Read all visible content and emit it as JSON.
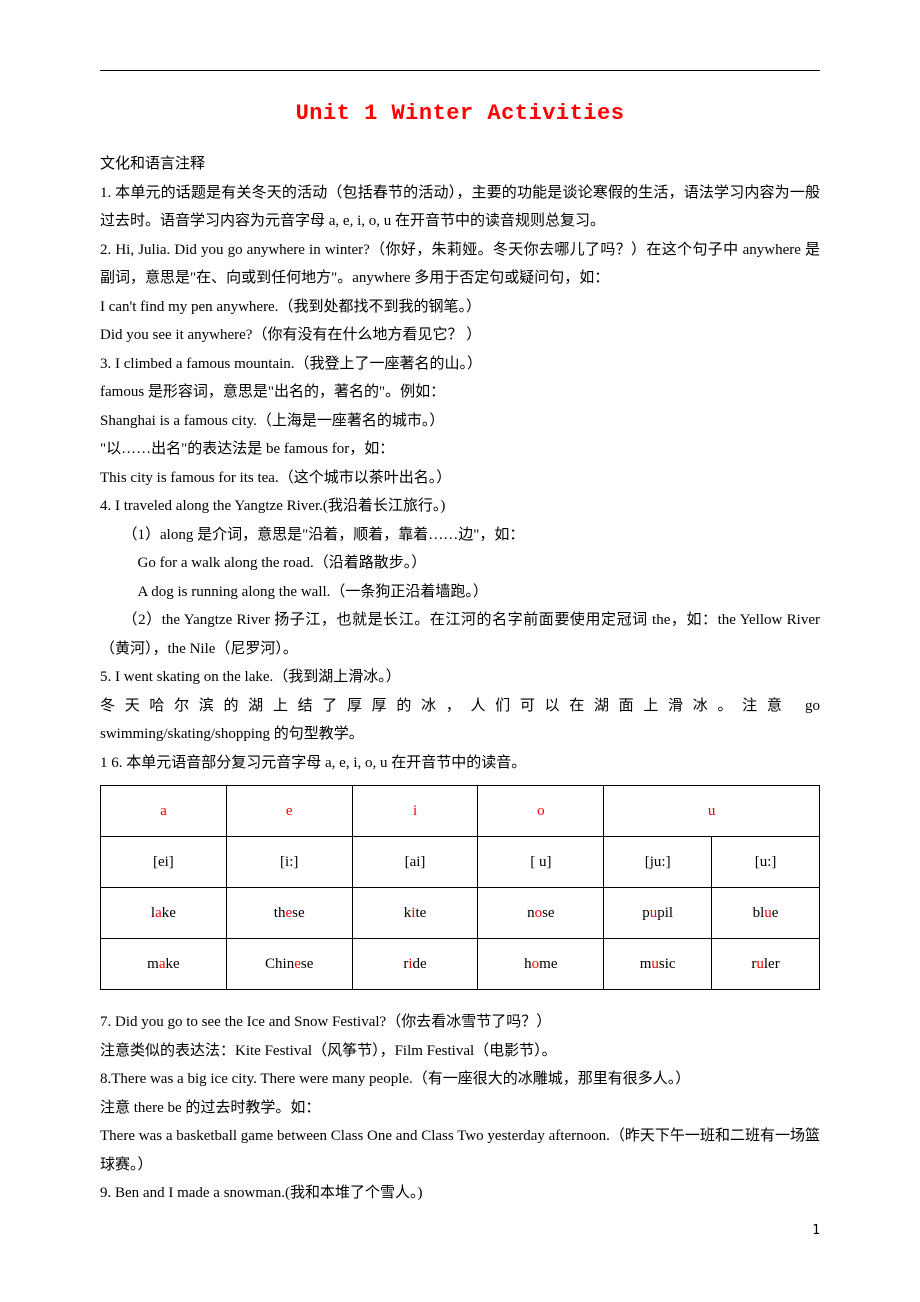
{
  "title": "Unit 1  Winter Activities",
  "sectionHeader": "文化和语言注释",
  "para1": "1. 本单元的话题是有关冬天的活动（包括春节的活动），主要的功能是谈论寒假的生活，语法学习内容为一般过去时。语音学习内容为元音字母 a, e, i, o, u 在开音节中的读音规则总复习。",
  "para2": "2. Hi, Julia. Did you go anywhere in winter?（你好，朱莉娅。冬天你去哪儿了吗？）在这个句子中 anywhere 是副词，意思是\"在、向或到任何地方\"。anywhere 多用于否定句或疑问句，如：",
  "para2a": "I can't find my pen anywhere.（我到处都找不到我的钢笔。）",
  "para2b": " Did you see it anywhere?（你有没有在什么地方看见它？ ）",
  "para3": "3. I climbed a famous mountain.（我登上了一座著名的山。）",
  "para3a": "famous 是形容词，意思是\"出名的，著名的\"。例如：",
  "para3b": "Shanghai is a famous city.（上海是一座著名的城市。）",
  "para3c": "\"以……出名\"的表达法是 be famous for，如：",
  "para3d": "This city is famous for its tea.（这个城市以茶叶出名。）",
  "para4": "4. I traveled along the Yangtze River.(我沿着长江旅行。)",
  "para4a": "（1）along 是介词，意思是\"沿着，顺着，靠着……边\"，如：",
  "para4b": "Go for a walk along the road.（沿着路散步。）",
  "para4c": "A dog is running along the wall.（一条狗正沿着墙跑。）",
  "para4d": "（2）the Yangtze River 扬子江，也就是长江。在江河的名字前面要使用定冠词 the，如：the Yellow River（黄河），the Nile（尼罗河）。",
  "para5": "5. I went skating on the lake.（我到湖上滑冰。）",
  "para5a_pre": " 冬天哈尔滨的湖上结了厚厚的冰，人们可以在湖面上滑冰。注意 go",
  "para5a_post": "swimming/skating/shopping 的句型教学。",
  "para6": "1  6. 本单元语音部分复习元音字母 a, e, i, o, u 在开音节中的读音。",
  "table": {
    "columns": 6,
    "colWidths": [
      "17.5%",
      "17.5%",
      "17.5%",
      "17.5%",
      "15%",
      "15%"
    ],
    "headerRow": [
      {
        "text": "a",
        "colspan": 1,
        "color": "#ff0000"
      },
      {
        "text": "e",
        "colspan": 1,
        "color": "#ff0000"
      },
      {
        "text": "i",
        "colspan": 1,
        "color": "#ff0000"
      },
      {
        "text": "o",
        "colspan": 1,
        "color": "#ff0000"
      },
      {
        "text": "u",
        "colspan": 2,
        "color": "#ff0000"
      }
    ],
    "rows": [
      [
        "[ei]",
        "[i:]",
        "[ai]",
        "[  u]",
        "[ju:]",
        "[u:]"
      ]
    ],
    "coloredRows": [
      [
        {
          "pre": "l",
          "hl": "a",
          "post": "ke"
        },
        {
          "pre": "th",
          "hl": "e",
          "post": "se"
        },
        {
          "pre": "k",
          "hl": "i",
          "post": "te"
        },
        {
          "pre": "n",
          "hl": "o",
          "post": "se"
        },
        {
          "pre": "p",
          "hl": "u",
          "post": "pil"
        },
        {
          "pre": "bl",
          "hl": "u",
          "post": "e"
        }
      ],
      [
        {
          "pre": "m",
          "hl": "a",
          "post": "ke"
        },
        {
          "pre": "Chin",
          "hl": "e",
          "post": "se"
        },
        {
          "pre": "r",
          "hl": "i",
          "post": "de"
        },
        {
          "pre": "h",
          "hl": "o",
          "post": "me"
        },
        {
          "pre": "m",
          "hl": "u",
          "post": "sic"
        },
        {
          "pre": "r",
          "hl": "u",
          "post": "ler"
        }
      ]
    ]
  },
  "para7": "7. Did you go to see the Ice and Snow Festival?（你去看冰雪节了吗？）",
  "para7a": "注意类似的表达法：Kite Festival（风筝节），Film Festival（电影节）。",
  "para8": "8.There was a big ice city. There were many people.（有一座很大的冰雕城，那里有很多人。）",
  "para8a": "注意 there be 的过去时教学。如：",
  "para8b": "There was a basketball game between Class One and Class Two yesterday afternoon.（昨天下午一班和二班有一场篮球赛。）",
  "para9": "9. Ben and I made a snowman.(我和本堆了个雪人。)",
  "pageNumber": "1",
  "colors": {
    "title": "#ff0000",
    "highlight": "#ff0000",
    "text": "#000000",
    "border": "#000000",
    "background": "#ffffff"
  }
}
